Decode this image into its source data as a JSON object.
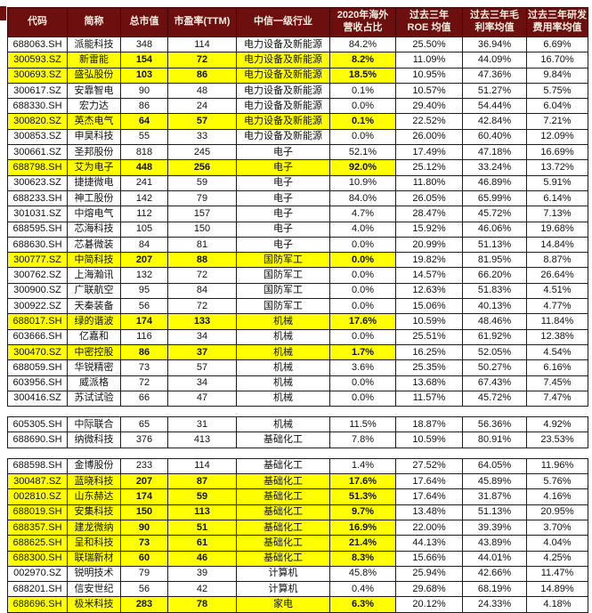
{
  "colors": {
    "header_bg": "#6e0f0f",
    "header_text": "#f6eee0",
    "highlight": "#ffff00",
    "border": "#1c1c1c"
  },
  "table": {
    "headers": [
      "代码",
      "简称",
      "总市值",
      "市盈率(TTM)",
      "中信一级行业",
      "2020年海外\n营收占比",
      "过去三年\nROE 均值",
      "过去三年毛\n利率均值",
      "过去三年研发\n费用率均值"
    ],
    "sections": [
      {
        "rows": [
          {
            "hl": false,
            "cells": [
              "688063.SH",
              "派能科技",
              "348",
              "114",
              "电力设备及新能源",
              "84.2%",
              "25.50%",
              "36.94%",
              "6.69%"
            ]
          },
          {
            "hl": true,
            "cells": [
              "300593.SZ",
              "新雷能",
              "154",
              "72",
              "电力设备及新能源",
              "8.2%",
              "11.09%",
              "44.09%",
              "16.70%"
            ]
          },
          {
            "hl": true,
            "cells": [
              "300693.SZ",
              "盛弘股份",
              "103",
              "86",
              "电力设备及新能源",
              "18.5%",
              "10.95%",
              "47.36%",
              "9.84%"
            ]
          },
          {
            "hl": false,
            "cells": [
              "300617.SZ",
              "安靠智电",
              "90",
              "48",
              "电力设备及新能源",
              "0.1%",
              "10.57%",
              "51.27%",
              "5.75%"
            ]
          },
          {
            "hl": false,
            "cells": [
              "688330.SH",
              "宏力达",
              "86",
              "24",
              "电力设备及新能源",
              "0.0%",
              "29.40%",
              "54.44%",
              "6.04%"
            ]
          },
          {
            "hl": true,
            "cells": [
              "300820.SZ",
              "英杰电气",
              "64",
              "57",
              "电力设备及新能源",
              "0.1%",
              "22.52%",
              "42.84%",
              "7.21%"
            ]
          },
          {
            "hl": false,
            "cells": [
              "300853.SZ",
              "申昊科技",
              "55",
              "33",
              "电力设备及新能源",
              "0.0%",
              "26.00%",
              "60.40%",
              "12.09%"
            ]
          },
          {
            "hl": false,
            "cells": [
              "300661.SZ",
              "圣邦股份",
              "818",
              "245",
              "电子",
              "52.1%",
              "17.49%",
              "47.18%",
              "16.69%"
            ]
          },
          {
            "hl": true,
            "cells": [
              "688798.SH",
              "艾为电子",
              "448",
              "256",
              "电子",
              "92.0%",
              "25.12%",
              "33.24%",
              "13.72%"
            ]
          },
          {
            "hl": false,
            "cells": [
              "300623.SZ",
              "捷捷微电",
              "241",
              "59",
              "电子",
              "10.9%",
              "11.80%",
              "46.89%",
              "5.91%"
            ]
          },
          {
            "hl": false,
            "cells": [
              "688233.SH",
              "神工股份",
              "142",
              "79",
              "电子",
              "84.0%",
              "26.05%",
              "65.99%",
              "6.14%"
            ]
          },
          {
            "hl": false,
            "cells": [
              "301031.SZ",
              "中熔电气",
              "112",
              "157",
              "电子",
              "4.7%",
              "28.47%",
              "45.72%",
              "7.13%"
            ]
          },
          {
            "hl": false,
            "cells": [
              "688595.SH",
              "芯海科技",
              "105",
              "150",
              "电子",
              "4.0%",
              "15.92%",
              "46.06%",
              "19.68%"
            ]
          },
          {
            "hl": false,
            "cells": [
              "688630.SH",
              "芯碁微装",
              "84",
              "81",
              "电子",
              "0.0%",
              "20.99%",
              "51.13%",
              "14.84%"
            ]
          },
          {
            "hl": true,
            "cells": [
              "300777.SZ",
              "中简科技",
              "207",
              "88",
              "国防军工",
              "0.0%",
              "19.82%",
              "81.95%",
              "8.87%"
            ]
          },
          {
            "hl": false,
            "cells": [
              "300762.SZ",
              "上海瀚讯",
              "132",
              "72",
              "国防军工",
              "0.0%",
              "14.57%",
              "66.20%",
              "26.64%"
            ]
          },
          {
            "hl": false,
            "cells": [
              "300900.SZ",
              "广联航空",
              "95",
              "84",
              "国防军工",
              "0.0%",
              "12.63%",
              "51.83%",
              "4.51%"
            ]
          },
          {
            "hl": false,
            "cells": [
              "300922.SZ",
              "天秦装备",
              "56",
              "72",
              "国防军工",
              "0.0%",
              "15.06%",
              "40.13%",
              "4.77%"
            ]
          },
          {
            "hl": true,
            "cells": [
              "688017.SH",
              "绿的谐波",
              "174",
              "133",
              "机械",
              "17.6%",
              "10.59%",
              "48.46%",
              "11.84%"
            ]
          },
          {
            "hl": false,
            "cells": [
              "603666.SH",
              "亿嘉和",
              "116",
              "34",
              "机械",
              "0.0%",
              "25.51%",
              "61.92%",
              "12.38%"
            ]
          },
          {
            "hl": true,
            "cells": [
              "300470.SZ",
              "中密控股",
              "86",
              "37",
              "机械",
              "1.7%",
              "16.25%",
              "52.05%",
              "4.54%"
            ]
          },
          {
            "hl": false,
            "cells": [
              "688059.SH",
              "华锐精密",
              "73",
              "57",
              "机械",
              "3.6%",
              "25.35%",
              "50.27%",
              "6.16%"
            ]
          },
          {
            "hl": false,
            "cells": [
              "603956.SH",
              "威派格",
              "72",
              "34",
              "机械",
              "0.0%",
              "13.68%",
              "67.43%",
              "7.45%"
            ]
          },
          {
            "hl": false,
            "cells": [
              "300416.SZ",
              "苏试试验",
              "66",
              "47",
              "机械",
              "0.0%",
              "11.57%",
              "45.72%",
              "7.47%"
            ]
          }
        ]
      },
      {
        "rows": [
          {
            "hl": false,
            "cells": [
              "605305.SH",
              "中际联合",
              "65",
              "31",
              "机械",
              "11.5%",
              "18.87%",
              "56.36%",
              "4.92%"
            ]
          },
          {
            "hl": false,
            "cells": [
              "688690.SH",
              "纳微科技",
              "376",
              "413",
              "基础化工",
              "7.8%",
              "10.59%",
              "80.91%",
              "23.53%"
            ]
          }
        ]
      },
      {
        "rows": [
          {
            "hl": false,
            "cells": [
              "688598.SH",
              "金博股份",
              "233",
              "114",
              "基础化工",
              "1.4%",
              "27.52%",
              "64.05%",
              "11.96%"
            ]
          },
          {
            "hl": true,
            "cells": [
              "300487.SZ",
              "蓝晓科技",
              "207",
              "87",
              "基础化工",
              "17.6%",
              "17.64%",
              "45.89%",
              "5.76%"
            ]
          },
          {
            "hl": true,
            "cells": [
              "002810.SZ",
              "山东赫达",
              "174",
              "59",
              "基础化工",
              "51.3%",
              "17.64%",
              "31.87%",
              "4.16%"
            ]
          },
          {
            "hl": true,
            "cells": [
              "688019.SH",
              "安集科技",
              "150",
              "113",
              "基础化工",
              "9.7%",
              "13.48%",
              "51.13%",
              "20.95%"
            ]
          },
          {
            "hl": true,
            "cells": [
              "688357.SH",
              "建龙微纳",
              "90",
              "51",
              "基础化工",
              "16.9%",
              "22.00%",
              "39.39%",
              "3.70%"
            ]
          },
          {
            "hl": true,
            "cells": [
              "688625.SH",
              "呈和科技",
              "73",
              "61",
              "基础化工",
              "21.4%",
              "44.13%",
              "43.89%",
              "4.04%"
            ]
          },
          {
            "hl": true,
            "cells": [
              "688300.SH",
              "联瑞新材",
              "60",
              "46",
              "基础化工",
              "8.3%",
              "15.66%",
              "44.01%",
              "4.25%"
            ]
          },
          {
            "hl": false,
            "cells": [
              "002970.SZ",
              "锐明技术",
              "79",
              "39",
              "计算机",
              "45.8%",
              "25.94%",
              "42.66%",
              "11.47%"
            ]
          },
          {
            "hl": false,
            "cells": [
              "688201.SH",
              "信安世纪",
              "56",
              "42",
              "计算机",
              "0.4%",
              "29.68%",
              "68.19%",
              "14.89%"
            ]
          },
          {
            "hl": true,
            "cells": [
              "688696.SH",
              "极米科技",
              "283",
              "78",
              "家电",
              "6.3%",
              "20.12%",
              "24.33%",
              "4.18%"
            ]
          }
        ]
      }
    ]
  }
}
